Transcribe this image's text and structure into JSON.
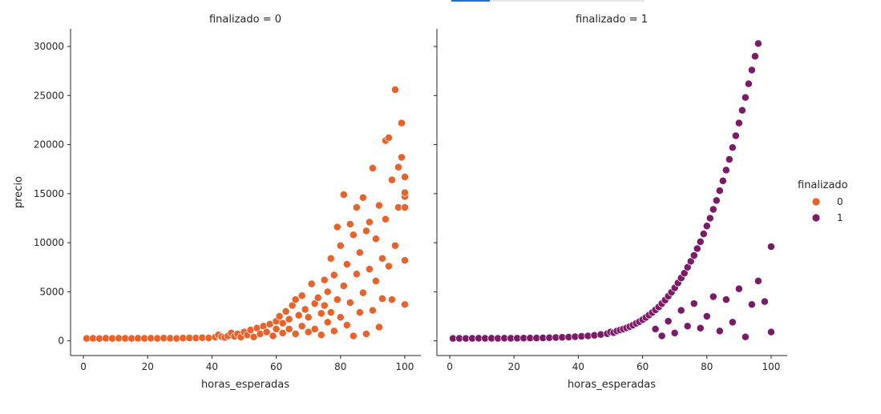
{
  "colors": {
    "series0": "#e8622a",
    "series1": "#7b1b68"
  },
  "topbar_progress": 0.2,
  "chart_data": [
    {
      "type": "scatter",
      "title": "finalizado = 0",
      "xlabel": "horas_esperadas",
      "ylabel": "precio",
      "xlim": [
        -4,
        105
      ],
      "ylim": [
        -1500,
        31800
      ],
      "xticks": [
        0,
        20,
        40,
        60,
        80,
        100
      ],
      "yticks": [
        0,
        5000,
        10000,
        15000,
        20000,
        25000,
        30000
      ],
      "series": [
        {
          "name": "0",
          "points": [
            [
              1,
              240
            ],
            [
              3,
              250
            ],
            [
              5,
              230
            ],
            [
              7,
              260
            ],
            [
              9,
              240
            ],
            [
              11,
              270
            ],
            [
              13,
              250
            ],
            [
              15,
              240
            ],
            [
              17,
              260
            ],
            [
              19,
              250
            ],
            [
              21,
              270
            ],
            [
              23,
              250
            ],
            [
              25,
              280
            ],
            [
              27,
              260
            ],
            [
              29,
              240
            ],
            [
              31,
              280
            ],
            [
              33,
              300
            ],
            [
              35,
              290
            ],
            [
              37,
              320
            ],
            [
              39,
              300
            ],
            [
              41,
              380
            ],
            [
              42,
              600
            ],
            [
              43,
              420
            ],
            [
              44,
              350
            ],
            [
              45,
              500
            ],
            [
              46,
              800
            ],
            [
              47,
              450
            ],
            [
              48,
              700
            ],
            [
              49,
              380
            ],
            [
              50,
              900
            ],
            [
              51,
              600
            ],
            [
              52,
              1100
            ],
            [
              53,
              400
            ],
            [
              54,
              1300
            ],
            [
              55,
              700
            ],
            [
              56,
              1500
            ],
            [
              57,
              900
            ],
            [
              58,
              1700
            ],
            [
              59,
              500
            ],
            [
              60,
              2000
            ],
            [
              60,
              1200
            ],
            [
              61,
              2500
            ],
            [
              62,
              800
            ],
            [
              62,
              1800
            ],
            [
              63,
              3000
            ],
            [
              64,
              1200
            ],
            [
              64,
              2200
            ],
            [
              65,
              3600
            ],
            [
              66,
              700
            ],
            [
              66,
              4200
            ],
            [
              67,
              2600
            ],
            [
              68,
              1500
            ],
            [
              68,
              4600
            ],
            [
              69,
              3200
            ],
            [
              70,
              900
            ],
            [
              70,
              2400
            ],
            [
              71,
              5800
            ],
            [
              72,
              3800
            ],
            [
              72,
              1200
            ],
            [
              73,
              4400
            ],
            [
              74,
              600
            ],
            [
              74,
              2800
            ],
            [
              75,
              6200
            ],
            [
              75,
              3600
            ],
            [
              76,
              1900
            ],
            [
              76,
              5000
            ],
            [
              77,
              8400
            ],
            [
              77,
              2900
            ],
            [
              78,
              1000
            ],
            [
              78,
              6700
            ],
            [
              79,
              4200
            ],
            [
              79,
              11600
            ],
            [
              80,
              2400
            ],
            [
              80,
              9700
            ],
            [
              81,
              5600
            ],
            [
              81,
              14900
            ],
            [
              82,
              1600
            ],
            [
              82,
              7800
            ],
            [
              83,
              3900
            ],
            [
              83,
              11900
            ],
            [
              84,
              10800
            ],
            [
              84,
              500
            ],
            [
              85,
              6800
            ],
            [
              85,
              13600
            ],
            [
              86,
              2900
            ],
            [
              86,
              9000
            ],
            [
              87,
              14600
            ],
            [
              87,
              4900
            ],
            [
              88,
              700
            ],
            [
              88,
              11200
            ],
            [
              89,
              7300
            ],
            [
              89,
              12100
            ],
            [
              90,
              3100
            ],
            [
              90,
              17600
            ],
            [
              91,
              6100
            ],
            [
              91,
              10400
            ],
            [
              92,
              1400
            ],
            [
              92,
              13800
            ],
            [
              93,
              8400
            ],
            [
              93,
              4300
            ],
            [
              94,
              20400
            ],
            [
              94,
              12400
            ],
            [
              95,
              20700
            ],
            [
              95,
              7600
            ],
            [
              96,
              16400
            ],
            [
              96,
              4200
            ],
            [
              97,
              25600
            ],
            [
              97,
              9700
            ],
            [
              98,
              17700
            ],
            [
              98,
              13600
            ],
            [
              99,
              22200
            ],
            [
              99,
              18700
            ],
            [
              100,
              16700
            ],
            [
              100,
              8200
            ],
            [
              100,
              3700
            ],
            [
              100,
              13600
            ],
            [
              100,
              14700
            ],
            [
              100,
              15100
            ]
          ]
        }
      ]
    },
    {
      "type": "scatter",
      "title": "finalizado = 1",
      "xlabel": "horas_esperadas",
      "ylabel": "",
      "xlim": [
        -4,
        105
      ],
      "ylim": [
        -1500,
        31800
      ],
      "xticks": [
        0,
        20,
        40,
        60,
        80,
        100
      ],
      "yticks": [
        0,
        5000,
        10000,
        15000,
        20000,
        25000,
        30000
      ],
      "series": [
        {
          "name": "1",
          "points": [
            [
              1,
              240
            ],
            [
              3,
              250
            ],
            [
              5,
              240
            ],
            [
              7,
              250
            ],
            [
              9,
              260
            ],
            [
              11,
              250
            ],
            [
              13,
              260
            ],
            [
              15,
              250
            ],
            [
              17,
              270
            ],
            [
              19,
              260
            ],
            [
              21,
              270
            ],
            [
              23,
              280
            ],
            [
              25,
              290
            ],
            [
              27,
              290
            ],
            [
              29,
              300
            ],
            [
              31,
              320
            ],
            [
              33,
              340
            ],
            [
              35,
              360
            ],
            [
              37,
              380
            ],
            [
              39,
              420
            ],
            [
              41,
              460
            ],
            [
              43,
              500
            ],
            [
              45,
              560
            ],
            [
              47,
              640
            ],
            [
              49,
              720
            ],
            [
              50,
              900
            ],
            [
              51,
              840
            ],
            [
              52,
              1000
            ],
            [
              53,
              1100
            ],
            [
              54,
              1200
            ],
            [
              55,
              1320
            ],
            [
              56,
              1450
            ],
            [
              57,
              1600
            ],
            [
              58,
              1780
            ],
            [
              59,
              1950
            ],
            [
              60,
              2150
            ],
            [
              61,
              2380
            ],
            [
              62,
              2620
            ],
            [
              63,
              2880
            ],
            [
              64,
              3150
            ],
            [
              65,
              3450
            ],
            [
              66,
              3800
            ],
            [
              67,
              4150
            ],
            [
              68,
              4550
            ],
            [
              69,
              4950
            ],
            [
              70,
              5400
            ],
            [
              71,
              5900
            ],
            [
              72,
              6400
            ],
            [
              73,
              6900
            ],
            [
              74,
              7500
            ],
            [
              75,
              8100
            ],
            [
              76,
              8700
            ],
            [
              77,
              9400
            ],
            [
              78,
              10100
            ],
            [
              79,
              10900
            ],
            [
              80,
              11700
            ],
            [
              81,
              12500
            ],
            [
              82,
              13400
            ],
            [
              83,
              14300
            ],
            [
              84,
              15300
            ],
            [
              85,
              16300
            ],
            [
              86,
              17400
            ],
            [
              87,
              18500
            ],
            [
              88,
              19700
            ],
            [
              89,
              20900
            ],
            [
              90,
              22200
            ],
            [
              91,
              23500
            ],
            [
              92,
              24800
            ],
            [
              93,
              26200
            ],
            [
              94,
              27600
            ],
            [
              95,
              29000
            ],
            [
              96,
              30300
            ],
            [
              64,
              1200
            ],
            [
              66,
              500
            ],
            [
              68,
              2000
            ],
            [
              70,
              800
            ],
            [
              72,
              3100
            ],
            [
              74,
              1500
            ],
            [
              76,
              3800
            ],
            [
              78,
              1300
            ],
            [
              80,
              2500
            ],
            [
              82,
              4500
            ],
            [
              84,
              1000
            ],
            [
              86,
              4200
            ],
            [
              88,
              1900
            ],
            [
              90,
              5300
            ],
            [
              92,
              400
            ],
            [
              94,
              3700
            ],
            [
              96,
              6100
            ],
            [
              98,
              4000
            ],
            [
              100,
              9600
            ],
            [
              100,
              900
            ]
          ]
        }
      ]
    }
  ],
  "legend": {
    "title": "finalizado",
    "entries": [
      {
        "label": "0",
        "color": "#e8622a"
      },
      {
        "label": "1",
        "color": "#7b1b68"
      }
    ]
  }
}
